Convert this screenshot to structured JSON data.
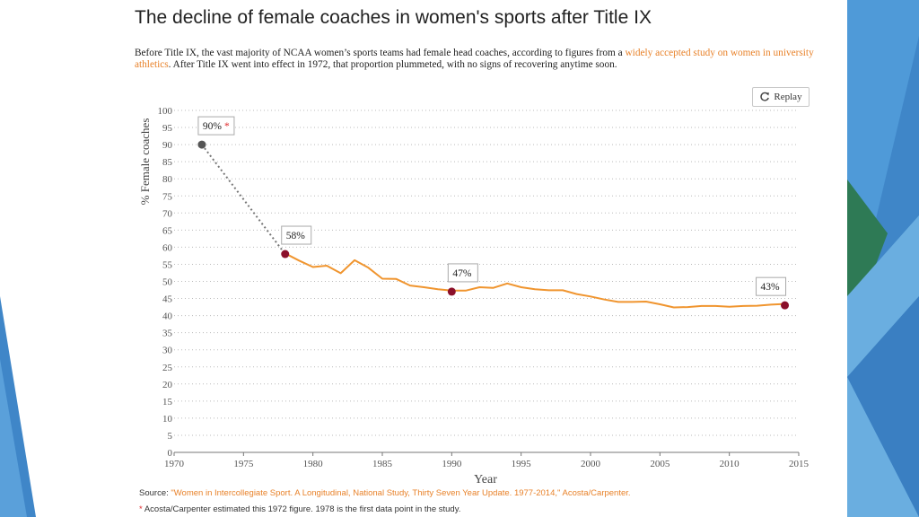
{
  "title": "The decline of female coaches in women's sports after Title IX",
  "intro": {
    "text_before": "Before Title IX, the vast majority of NCAA women’s sports teams had female head coaches, according to figures from a ",
    "link_text": "widely accepted study on women in university athletics",
    "text_after": ". After Title IX went into effect in 1972, that proportion plummeted, with no signs of recovering anytime soon."
  },
  "replay_label": "Replay",
  "source": {
    "label": "Source: ",
    "link_text": "\"Women in Intercollegiate Sport. A Longitudinal, National Study, Thirty Seven Year Update. 1977-2014,\" Acosta/Carpenter."
  },
  "footnote": {
    "star": "*",
    "text": " Acosta/Carpenter estimated this 1972 figure. 1978 is the first data point in the study."
  },
  "colors": {
    "line": "#f0952f",
    "estimate_point": "#555555",
    "highlight_point": "#8b0f2a",
    "accent_link": "#e8822a",
    "star": "#e0282a"
  },
  "chart_data": {
    "type": "line",
    "title": "",
    "xlabel": "Year",
    "ylabel": "% Female coaches",
    "xlim": [
      1970,
      2015
    ],
    "ylim": [
      0,
      100
    ],
    "x_ticks": [
      1970,
      1975,
      1980,
      1985,
      1990,
      1995,
      2000,
      2005,
      2010,
      2015
    ],
    "y_ticks": [
      0,
      5,
      10,
      15,
      20,
      25,
      30,
      35,
      40,
      45,
      50,
      55,
      60,
      65,
      70,
      75,
      80,
      85,
      90,
      95,
      100
    ],
    "grid": true,
    "estimate": {
      "x": [
        1972,
        1978
      ],
      "y": [
        90,
        58
      ]
    },
    "series": [
      {
        "name": "% Female coaches",
        "x": [
          1978,
          1979,
          1980,
          1981,
          1982,
          1983,
          1984,
          1985,
          1986,
          1987,
          1988,
          1989,
          1990,
          1991,
          1992,
          1993,
          1994,
          1995,
          1996,
          1997,
          1998,
          1999,
          2000,
          2001,
          2002,
          2003,
          2004,
          2005,
          2006,
          2007,
          2008,
          2009,
          2010,
          2011,
          2012,
          2013,
          2014
        ],
        "y": [
          58.2,
          56.1,
          54.2,
          54.6,
          52.4,
          56.2,
          54.0,
          50.8,
          50.7,
          48.8,
          48.3,
          47.7,
          47.3,
          47.3,
          48.3,
          48.1,
          49.4,
          48.3,
          47.7,
          47.4,
          47.4,
          46.3,
          45.6,
          44.7,
          44.0,
          44.0,
          44.1,
          43.3,
          42.4,
          42.5,
          42.8,
          42.8,
          42.6,
          42.8,
          42.9,
          43.2,
          43.4
        ]
      }
    ],
    "annotations": [
      {
        "x": 1972,
        "y": 90,
        "label": "90%",
        "star": "*"
      },
      {
        "x": 1978,
        "y": 58,
        "label": "58%",
        "star": ""
      },
      {
        "x": 1990,
        "y": 47,
        "label": "47%",
        "star": ""
      },
      {
        "x": 2014,
        "y": 43,
        "label": "43%",
        "star": ""
      }
    ]
  }
}
